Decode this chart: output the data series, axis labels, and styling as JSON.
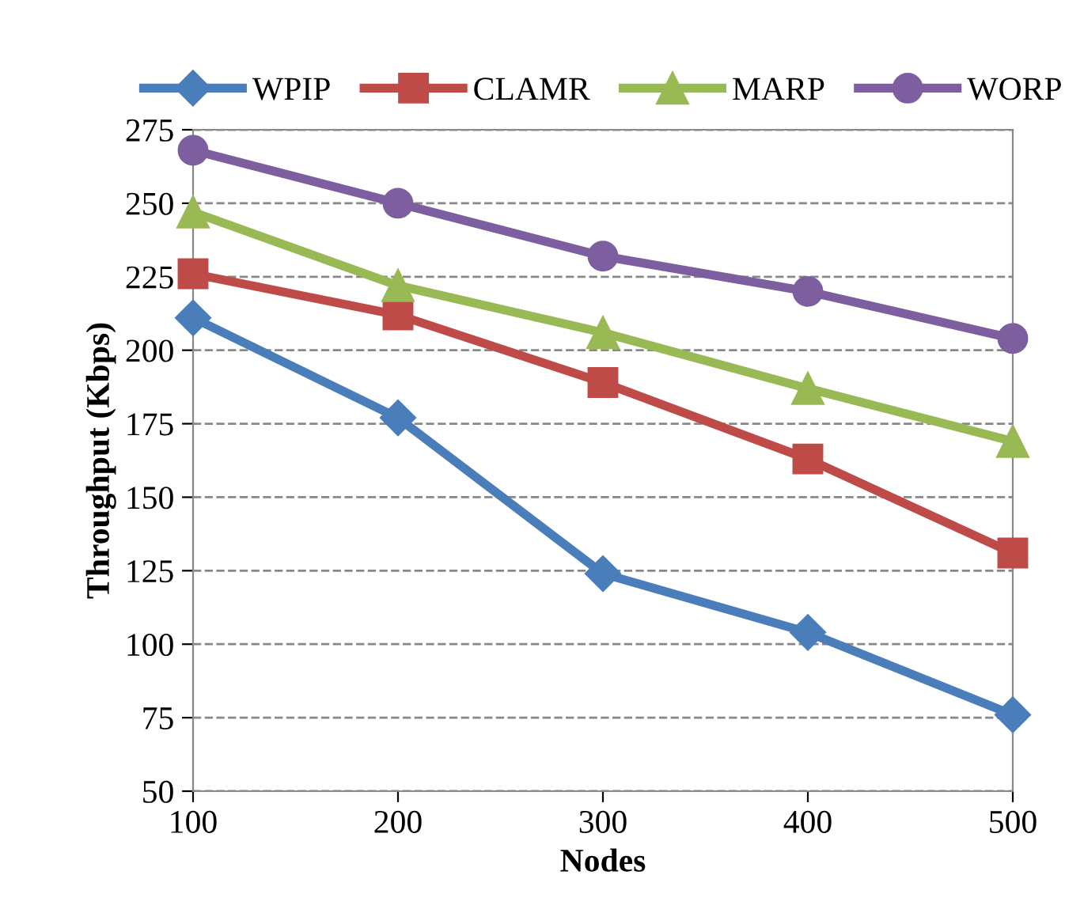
{
  "chart_data": {
    "type": "line",
    "xlabel": "Nodes",
    "ylabel": "Throughput (Kbps)",
    "x": [
      100,
      200,
      300,
      400,
      500
    ],
    "xlim": [
      100,
      500
    ],
    "xticks": [
      100,
      200,
      300,
      400,
      500
    ],
    "ylim": [
      50,
      275
    ],
    "yticks": [
      50,
      75,
      100,
      125,
      150,
      175,
      200,
      225,
      250,
      275
    ],
    "grid": "y",
    "legend": "top",
    "line_style": "solid",
    "series": [
      {
        "name": "WPIP",
        "color": "#4a7ebb",
        "marker": "diamond",
        "values": [
          211,
          177,
          124,
          104,
          76
        ]
      },
      {
        "name": "CLAMR",
        "color": "#be4b48",
        "marker": "square",
        "values": [
          226,
          212,
          189,
          163,
          131
        ]
      },
      {
        "name": "MARP",
        "color": "#98b954",
        "marker": "triangle",
        "values": [
          247,
          222,
          206,
          187,
          169
        ]
      },
      {
        "name": "WORP",
        "color": "#7d5fa0",
        "marker": "circle",
        "values": [
          268,
          250,
          232,
          220,
          204
        ]
      }
    ]
  }
}
